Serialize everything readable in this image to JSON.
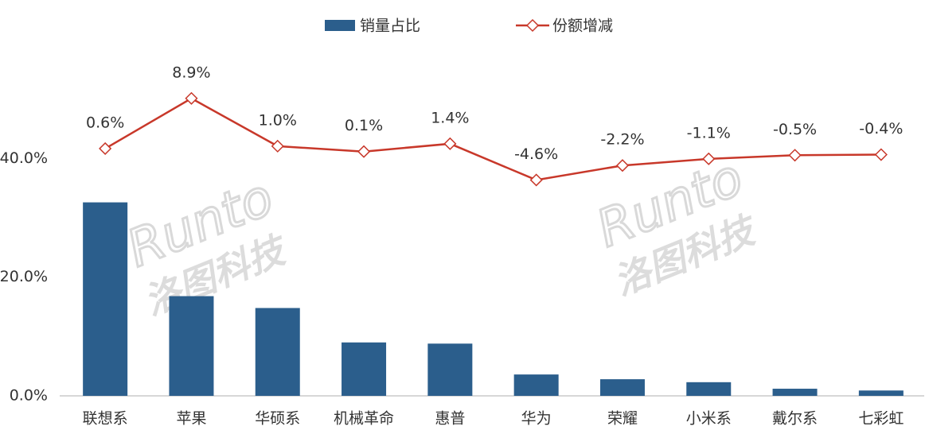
{
  "chart_data": {
    "type": "bar-line",
    "categories": [
      "联想系",
      "苹果",
      "华硕系",
      "机械革命",
      "惠普",
      "华为",
      "荣耀",
      "小米系",
      "戴尔系",
      "七彩虹"
    ],
    "series": [
      {
        "name": "销量占比",
        "type": "bar",
        "color": "#2b5e8c",
        "values": [
          32.6,
          16.8,
          14.8,
          9.0,
          8.8,
          3.6,
          2.8,
          2.3,
          1.2,
          0.9
        ]
      },
      {
        "name": "份额增减",
        "type": "line",
        "axis": "y2",
        "color": "#c8382a",
        "values": [
          0.6,
          8.9,
          1.0,
          0.1,
          1.4,
          -4.6,
          -2.2,
          -1.1,
          -0.5,
          -0.4
        ],
        "value_labels": [
          "0.6%",
          "8.9%",
          "1.0%",
          "0.1%",
          "1.4%",
          "-4.6%",
          "-2.2%",
          "-1.1%",
          "-0.5%",
          "-0.4%"
        ]
      }
    ],
    "ylim": [
      0,
      60
    ],
    "yticks": [
      {
        "value": 0,
        "label": "0.0%"
      },
      {
        "value": 20,
        "label": "20.0%"
      },
      {
        "value": 40,
        "label": "40.0%"
      }
    ],
    "y2lim": [
      -40.3,
      18.6
    ],
    "legend": "top",
    "watermark": {
      "brand": "Runto",
      "name": "洛图科技"
    }
  }
}
